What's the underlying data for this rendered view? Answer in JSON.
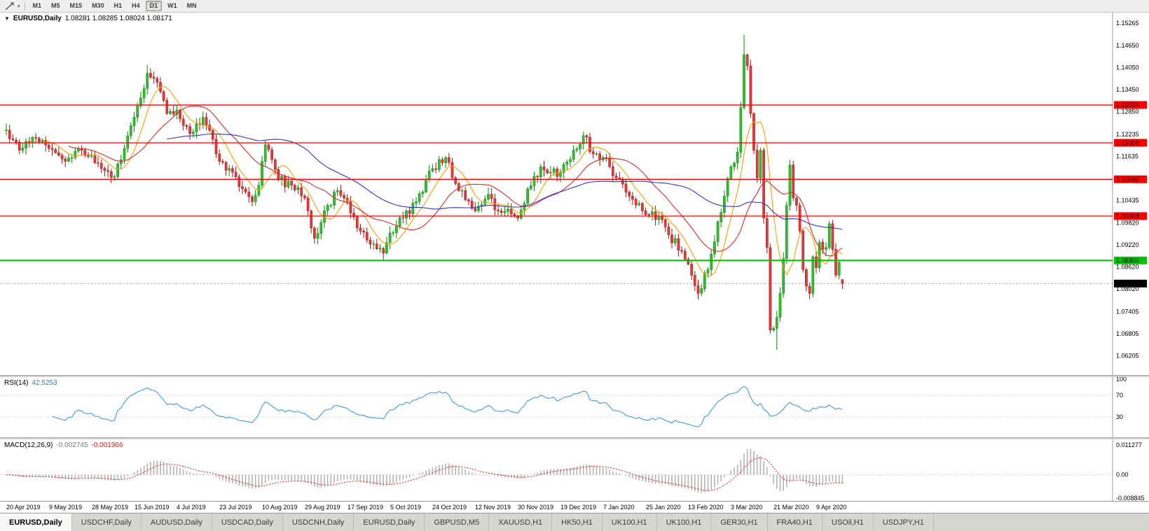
{
  "toolbar": {
    "timeframes": [
      {
        "label": "M1",
        "active": false
      },
      {
        "label": "M5",
        "active": false
      },
      {
        "label": "M15",
        "active": false
      },
      {
        "label": "M30",
        "active": false
      },
      {
        "label": "H1",
        "active": false
      },
      {
        "label": "H4",
        "active": false
      },
      {
        "label": "D1",
        "active": true
      },
      {
        "label": "W1",
        "active": false
      },
      {
        "label": "MN",
        "active": false
      }
    ]
  },
  "icons": {
    "symbol_dropdown": "▼",
    "tool_caret": "▾"
  },
  "price_chart": {
    "title": "EURUSD,Daily",
    "ohlc_text": "1.08281 1.08285 1.08024 1.08171",
    "axis_labels": [
      "1.15265",
      "1.14650",
      "1.14050",
      "1.13450",
      "1.12850",
      "1.12235",
      "1.11635",
      "1.11035",
      "1.10435",
      "1.09820",
      "1.09220",
      "1.08620",
      "1.08020",
      "1.07405",
      "1.06805",
      "1.06205"
    ],
    "colors": {
      "up": "#2fbf2f",
      "up_edge": "#0c860c",
      "down": "#e23b3b",
      "down_edge": "#a31515",
      "resistance": "#ff0000",
      "support": "#00c400",
      "bid_tag": "#000000"
    }
  },
  "rsi": {
    "title": "RSI(14)",
    "value": "42.5253",
    "axis_labels": [
      "100",
      "70",
      "30"
    ],
    "axis_values": [
      100,
      70,
      30
    ],
    "line_color": "#3f9be0"
  },
  "macd": {
    "title": "MACD(12,26,9)",
    "value_main": "-0.002745",
    "value_signal": "-0.001966",
    "axis_labels": [
      "0.011277",
      "0.00",
      "-0.008845"
    ],
    "axis_values": [
      0.011277,
      0,
      -0.008845
    ],
    "hist_color": "#b4b4b4",
    "signal_color": "#d42020"
  },
  "tabs": [
    {
      "label": "EURUSD,Daily",
      "active": true
    },
    {
      "label": "USDCHF,Daily",
      "active": false
    },
    {
      "label": "AUDUSD,Daily",
      "active": false
    },
    {
      "label": "USDCAD,Daily",
      "active": false
    },
    {
      "label": "USDCNH,Daily",
      "active": false
    },
    {
      "label": "EURUSD,Daily",
      "active": false
    },
    {
      "label": "GBPUSD,M5",
      "active": false
    },
    {
      "label": "XAUUSD,H1",
      "active": false
    },
    {
      "label": "HK50,H1",
      "active": false
    },
    {
      "label": "UK100,H1",
      "active": false
    },
    {
      "label": "UK100,H1",
      "active": false
    },
    {
      "label": "GER30,H1",
      "active": false
    },
    {
      "label": "FRA40,H1",
      "active": false
    },
    {
      "label": "USOil,H1",
      "active": false
    },
    {
      "label": "USDJPY,H1",
      "active": false
    }
  ],
  "chart_data": {
    "type": "candlestick",
    "symbol": "EURUSD",
    "timeframe": "Daily",
    "bar_count": 256,
    "visible_range": {
      "price_max": 1.1555,
      "price_min": 1.0568
    },
    "x_tick_labels": [
      "20 Apr 2019",
      "9 May 2019",
      "28 May 2019",
      "15 Jun 2019",
      "4 Jul 2019",
      "23 Jul 2019",
      "10 Aug 2019",
      "29 Aug 2019",
      "17 Sep 2019",
      "5 Oct 2019",
      "24 Oct 2019",
      "12 Nov 2019",
      "30 Nov 2019",
      "19 Dec 2019",
      "7 Jan 2020",
      "25 Jan 2020",
      "13 Feb 2020",
      "3 Mar 2020",
      "21 Mar 2020",
      "9 Apr 2020"
    ],
    "x_tick_indexes": [
      0,
      13,
      26,
      39,
      52,
      65,
      78,
      91,
      104,
      117,
      130,
      143,
      156,
      169,
      182,
      195,
      208,
      221,
      234,
      247
    ],
    "close_anchors": [
      [
        0,
        1.1235
      ],
      [
        4,
        1.118
      ],
      [
        8,
        1.1215
      ],
      [
        13,
        1.1185
      ],
      [
        18,
        1.115
      ],
      [
        22,
        1.1185
      ],
      [
        26,
        1.1165
      ],
      [
        30,
        1.1125
      ],
      [
        33,
        1.1108
      ],
      [
        36,
        1.1185
      ],
      [
        39,
        1.127
      ],
      [
        43,
        1.139
      ],
      [
        46,
        1.1365
      ],
      [
        49,
        1.128
      ],
      [
        52,
        1.129
      ],
      [
        56,
        1.1225
      ],
      [
        60,
        1.127
      ],
      [
        63,
        1.121
      ],
      [
        65,
        1.115
      ],
      [
        69,
        1.112
      ],
      [
        72,
        1.1075
      ],
      [
        75,
        1.104
      ],
      [
        77,
        1.1085
      ],
      [
        79,
        1.1195
      ],
      [
        83,
        1.11
      ],
      [
        87,
        1.1085
      ],
      [
        91,
        1.105
      ],
      [
        94,
        1.094
      ],
      [
        98,
        1.103
      ],
      [
        101,
        1.107
      ],
      [
        104,
        1.104
      ],
      [
        108,
        1.096
      ],
      [
        112,
        1.0925
      ],
      [
        115,
        1.09
      ],
      [
        117,
        1.0955
      ],
      [
        121,
        1.0995
      ],
      [
        125,
        1.104
      ],
      [
        130,
        1.113
      ],
      [
        134,
        1.116
      ],
      [
        138,
        1.107
      ],
      [
        143,
        1.1015
      ],
      [
        147,
        1.106
      ],
      [
        150,
        1.1015
      ],
      [
        153,
        1.102
      ],
      [
        156,
        1.0995
      ],
      [
        159,
        1.1075
      ],
      [
        163,
        1.1135
      ],
      [
        166,
        1.112
      ],
      [
        169,
        1.112
      ],
      [
        173,
        1.118
      ],
      [
        176,
        1.122
      ],
      [
        179,
        1.117
      ],
      [
        182,
        1.116
      ],
      [
        186,
        1.1105
      ],
      [
        190,
        1.1055
      ],
      [
        195,
        1.1005
      ],
      [
        199,
        1.1
      ],
      [
        202,
        1.095
      ],
      [
        206,
        1.0905
      ],
      [
        208,
        1.087
      ],
      [
        211,
        1.079
      ],
      [
        214,
        1.0855
      ],
      [
        217,
        1.0985
      ],
      [
        219,
        1.1055
      ],
      [
        221,
        1.1135
      ],
      [
        223,
        1.1175
      ],
      [
        225,
        1.144
      ],
      [
        226,
        1.141
      ],
      [
        227,
        1.128
      ],
      [
        228,
        1.118
      ],
      [
        229,
        1.1105
      ],
      [
        230,
        1.118
      ],
      [
        231,
        1.0995
      ],
      [
        232,
        1.0915
      ],
      [
        233,
        1.069
      ],
      [
        234,
        1.0695
      ],
      [
        235,
        1.0725
      ],
      [
        236,
        1.079
      ],
      [
        237,
        1.0885
      ],
      [
        238,
        1.103
      ],
      [
        239,
        1.114
      ],
      [
        240,
        1.105
      ],
      [
        241,
        1.103
      ],
      [
        242,
        1.096
      ],
      [
        243,
        1.0855
      ],
      [
        244,
        1.081
      ],
      [
        245,
        1.079
      ],
      [
        246,
        1.089
      ],
      [
        247,
        1.086
      ],
      [
        248,
        1.093
      ],
      [
        249,
        1.091
      ],
      [
        250,
        1.0915
      ],
      [
        251,
        1.098
      ],
      [
        252,
        1.091
      ],
      [
        253,
        1.084
      ],
      [
        254,
        1.0875
      ],
      [
        255,
        1.08171
      ]
    ],
    "wick_extremes": [
      [
        43,
        1.1412,
        null
      ],
      [
        75,
        null,
        1.1027
      ],
      [
        94,
        null,
        1.0926
      ],
      [
        115,
        null,
        1.0879
      ],
      [
        211,
        null,
        1.0778
      ],
      [
        225,
        1.1495,
        null
      ],
      [
        235,
        null,
        1.0636
      ],
      [
        239,
        1.1148,
        null
      ]
    ],
    "last_ohlc": [
      1.08281,
      1.08285,
      1.08024,
      1.08171
    ],
    "horizontal_lines": [
      {
        "price": 1.13034,
        "label": "1.13034",
        "role": "resistance"
      },
      {
        "price": 1.12004,
        "label": "1.12004",
        "role": "resistance"
      },
      {
        "price": 1.11009,
        "label": "1.11009",
        "role": "resistance"
      },
      {
        "price": 1.10008,
        "label": "1.10008",
        "role": "resistance"
      },
      {
        "price": 1.088,
        "label": "1.08800",
        "role": "support"
      }
    ],
    "current_price": {
      "price": 1.08171,
      "label": "1.08171"
    },
    "moving_averages": [
      {
        "period": 8,
        "color": "#ff9c00"
      },
      {
        "period": 20,
        "color": "#e02828"
      },
      {
        "period": 50,
        "color": "#3535cc"
      }
    ],
    "indicators": [
      {
        "name": "RSI",
        "params": "14",
        "value": 42.5253,
        "levels": [
          100,
          70,
          30
        ]
      },
      {
        "name": "MACD",
        "params": "12,26,9",
        "values": [
          -0.002745,
          -0.001966
        ],
        "range": [
          0.011277,
          -0.008845
        ]
      }
    ]
  }
}
